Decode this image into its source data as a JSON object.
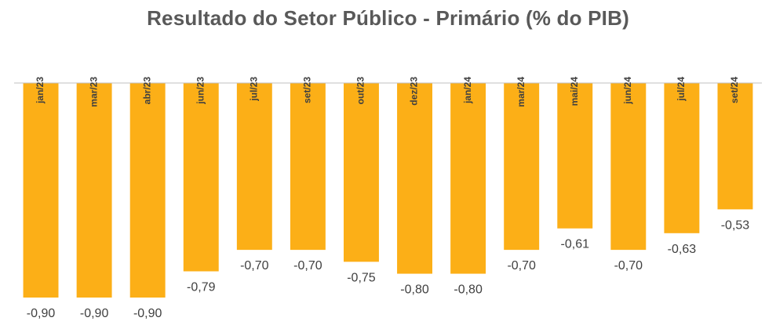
{
  "chart_data": {
    "type": "bar",
    "title": "Resultado do Setor Público - Primário (% do PIB)",
    "xlabel": "",
    "ylabel": "",
    "categories": [
      "jan/23",
      "mar/23",
      "abr/23",
      "jun/23",
      "jul/23",
      "set/23",
      "out/23",
      "dez/23",
      "jan/24",
      "mar/24",
      "mai/24",
      "jun/24",
      "jul/24",
      "set/24"
    ],
    "values": [
      -0.9,
      -0.9,
      -0.9,
      -0.79,
      -0.7,
      -0.7,
      -0.75,
      -0.8,
      -0.8,
      -0.7,
      -0.61,
      -0.7,
      -0.63,
      -0.53
    ],
    "data_labels": [
      "-0,90",
      "-0,90",
      "-0,90",
      "-0,79",
      "-0,70",
      "-0,70",
      "-0,75",
      "-0,80",
      "-0,80",
      "-0,70",
      "-0,61",
      "-0,70",
      "-0,63",
      "-0,53"
    ],
    "ylim": [
      -0.9,
      0
    ],
    "grid": false,
    "legend": "none",
    "x_axis_position": "top",
    "tick_label_rotation": "vertical",
    "colors": {
      "bar": "#FCAF17",
      "axis": "#BFBFBF",
      "title": "#595959",
      "text": "#404040"
    }
  }
}
